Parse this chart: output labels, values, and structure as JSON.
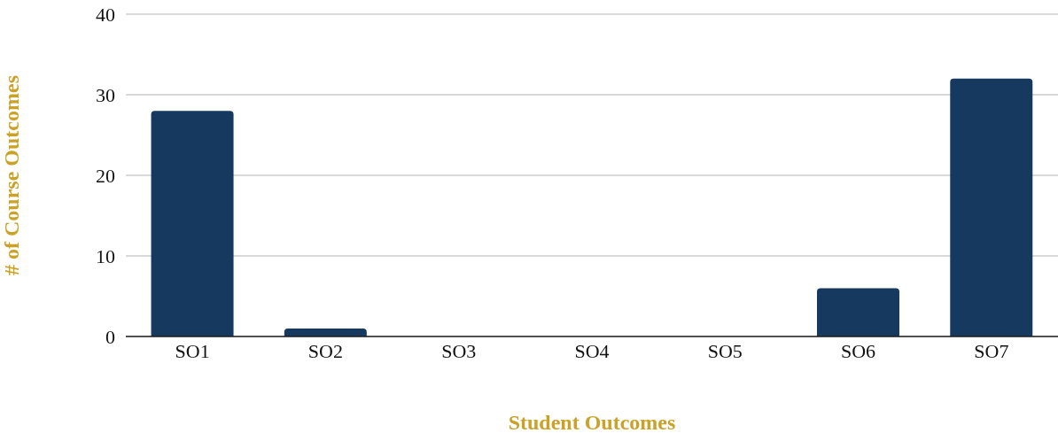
{
  "chart_data": {
    "type": "bar",
    "xlabel": "Student Outcomes",
    "ylabel": "# of Course Outcomes",
    "categories": [
      "SO1",
      "SO2",
      "SO3",
      "SO4",
      "SO5",
      "SO6",
      "SO7"
    ],
    "values": [
      28,
      1,
      0,
      0,
      0,
      6,
      32
    ],
    "color": "#163a5f",
    "ylim": [
      0,
      40
    ],
    "yticks": [
      0,
      10,
      20,
      30,
      40
    ],
    "grid": "y"
  }
}
